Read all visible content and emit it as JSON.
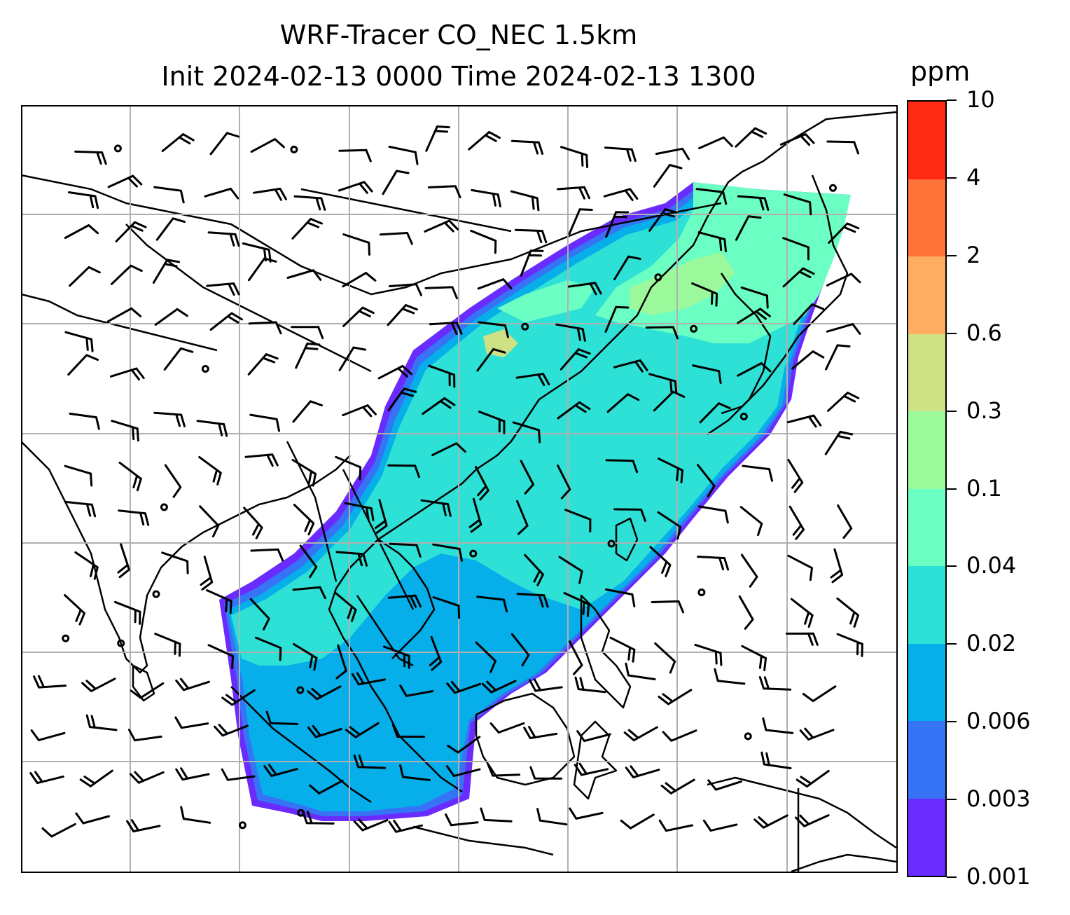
{
  "title": {
    "line1": "WRF-Tracer CO_NEC 1.5km",
    "line2": "Init 2024-02-13 0000 Time 2024-02-13 1300"
  },
  "colorbar": {
    "unit": "ppm",
    "levels": [
      "0.001",
      "0.003",
      "0.006",
      "0.02",
      "0.04",
      "0.1",
      "0.3",
      "0.6",
      "2",
      "4",
      "10"
    ],
    "colors": [
      "#6a2bff",
      "#3673f5",
      "#06aeea",
      "#2ee1d6",
      "#6bffc4",
      "#9cf99b",
      "#cfe185",
      "#ffad60",
      "#ff7238",
      "#ff2a14"
    ]
  },
  "map": {
    "projection": "lambert-conformal",
    "gridlines": true,
    "field": "CO_NEC tracer concentration",
    "overlay": "wind-barbs",
    "coastline_color": "#000000",
    "grid_color": "#b0b0b0"
  }
}
